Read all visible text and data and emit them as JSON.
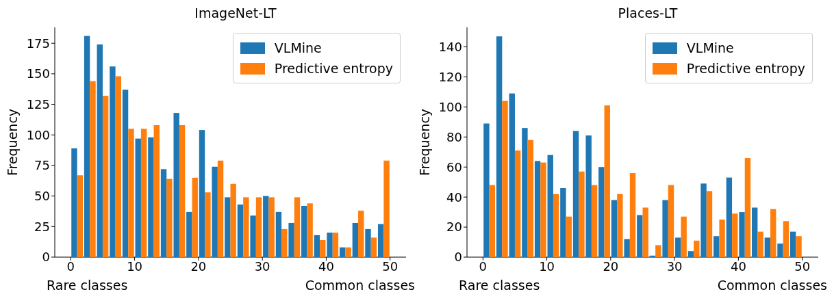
{
  "chart_data": [
    {
      "type": "histogram",
      "title": "ImageNet-LT",
      "ylabel": "Frequency",
      "bins": [
        0,
        2,
        4,
        6,
        8,
        10,
        12,
        14,
        16,
        18,
        20,
        22,
        24,
        26,
        28,
        30,
        32,
        34,
        36,
        38,
        40,
        42,
        44,
        46,
        48,
        50
      ],
      "series": [
        {
          "name": "VLMine",
          "color": "#1f77b4",
          "values": [
            89,
            181,
            174,
            156,
            137,
            97,
            98,
            72,
            118,
            37,
            104,
            74,
            49,
            43,
            34,
            50,
            37,
            28,
            42,
            18,
            20,
            8,
            28,
            23,
            27
          ]
        },
        {
          "name": "Predictive entropy",
          "color": "#ff7f0e",
          "values": [
            67,
            144,
            132,
            148,
            105,
            105,
            108,
            64,
            108,
            65,
            53,
            79,
            60,
            49,
            49,
            49,
            23,
            49,
            44,
            14,
            20,
            8,
            38,
            16,
            79
          ]
        }
      ],
      "xlim": [
        -2.5,
        52.5
      ],
      "xticks": [
        0,
        10,
        20,
        30,
        40,
        50
      ],
      "ylim": [
        0,
        188
      ],
      "yticks": [
        0,
        25,
        50,
        75,
        100,
        125,
        150,
        175
      ],
      "legend": "top right",
      "annotations": [
        "Rare classes",
        "Common classes"
      ]
    },
    {
      "type": "histogram",
      "title": "Places-LT",
      "ylabel": "Frequency",
      "bins": [
        0,
        2,
        4,
        6,
        8,
        10,
        12,
        14,
        16,
        18,
        20,
        22,
        24,
        26,
        28,
        30,
        32,
        34,
        36,
        38,
        40,
        42,
        44,
        46,
        48,
        50
      ],
      "series": [
        {
          "name": "VLMine",
          "color": "#1f77b4",
          "values": [
            89,
            147,
            109,
            86,
            64,
            68,
            46,
            84,
            81,
            60,
            38,
            12,
            28,
            1,
            38,
            13,
            4,
            49,
            14,
            53,
            30,
            33,
            13,
            9,
            17
          ]
        },
        {
          "name": "Predictive entropy",
          "color": "#ff7f0e",
          "values": [
            48,
            104,
            71,
            78,
            63,
            42,
            27,
            57,
            48,
            101,
            42,
            56,
            33,
            8,
            48,
            27,
            11,
            44,
            25,
            29,
            66,
            17,
            32,
            24,
            14
          ]
        }
      ],
      "xlim": [
        -2.5,
        52.5
      ],
      "xticks": [
        0,
        10,
        20,
        30,
        40,
        50
      ],
      "ylim": [
        0,
        153
      ],
      "yticks": [
        0,
        20,
        40,
        60,
        80,
        100,
        120,
        140
      ],
      "legend": "top right",
      "annotations": [
        "Rare classes",
        "Common classes"
      ]
    }
  ]
}
